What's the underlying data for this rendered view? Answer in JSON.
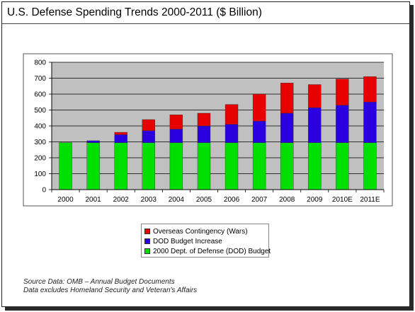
{
  "title": "U.S. Defense Spending Trends 2000-2011 ($ Billion)",
  "chart_data": {
    "type": "bar",
    "stacked": true,
    "categories": [
      "2000",
      "2001",
      "2002",
      "2003",
      "2004",
      "2005",
      "2006",
      "2007",
      "2008",
      "2009",
      "2010E",
      "2011E"
    ],
    "series": [
      {
        "name": "2000 Dept. of Defense (DOD) Budget",
        "color": "#00e000",
        "values": [
          295,
          295,
          295,
          295,
          295,
          295,
          295,
          295,
          295,
          295,
          295,
          295
        ]
      },
      {
        "name": "DOD Budget Increase",
        "color": "#2a00e0",
        "values": [
          0,
          12,
          50,
          75,
          85,
          105,
          115,
          135,
          185,
          220,
          235,
          255
        ]
      },
      {
        "name": "Overseas Contingency (Wars)",
        "color": "#e60000",
        "values": [
          0,
          0,
          15,
          70,
          90,
          80,
          125,
          170,
          190,
          145,
          165,
          160
        ]
      }
    ],
    "ylim": [
      0,
      800
    ],
    "yticks": [
      0,
      100,
      200,
      300,
      400,
      500,
      600,
      700,
      800
    ],
    "grid": true,
    "plot_background": "#c0c0c0",
    "legend_order": [
      "Overseas Contingency (Wars)",
      "DOD Budget Increase",
      "2000 Dept. of Defense (DOD) Budget"
    ],
    "legend_position": "bottom"
  },
  "source_lines": [
    "Source Data: OMB – Annual Budget Documents",
    "Data excludes Homeland Security and Veteran's Affairs"
  ]
}
